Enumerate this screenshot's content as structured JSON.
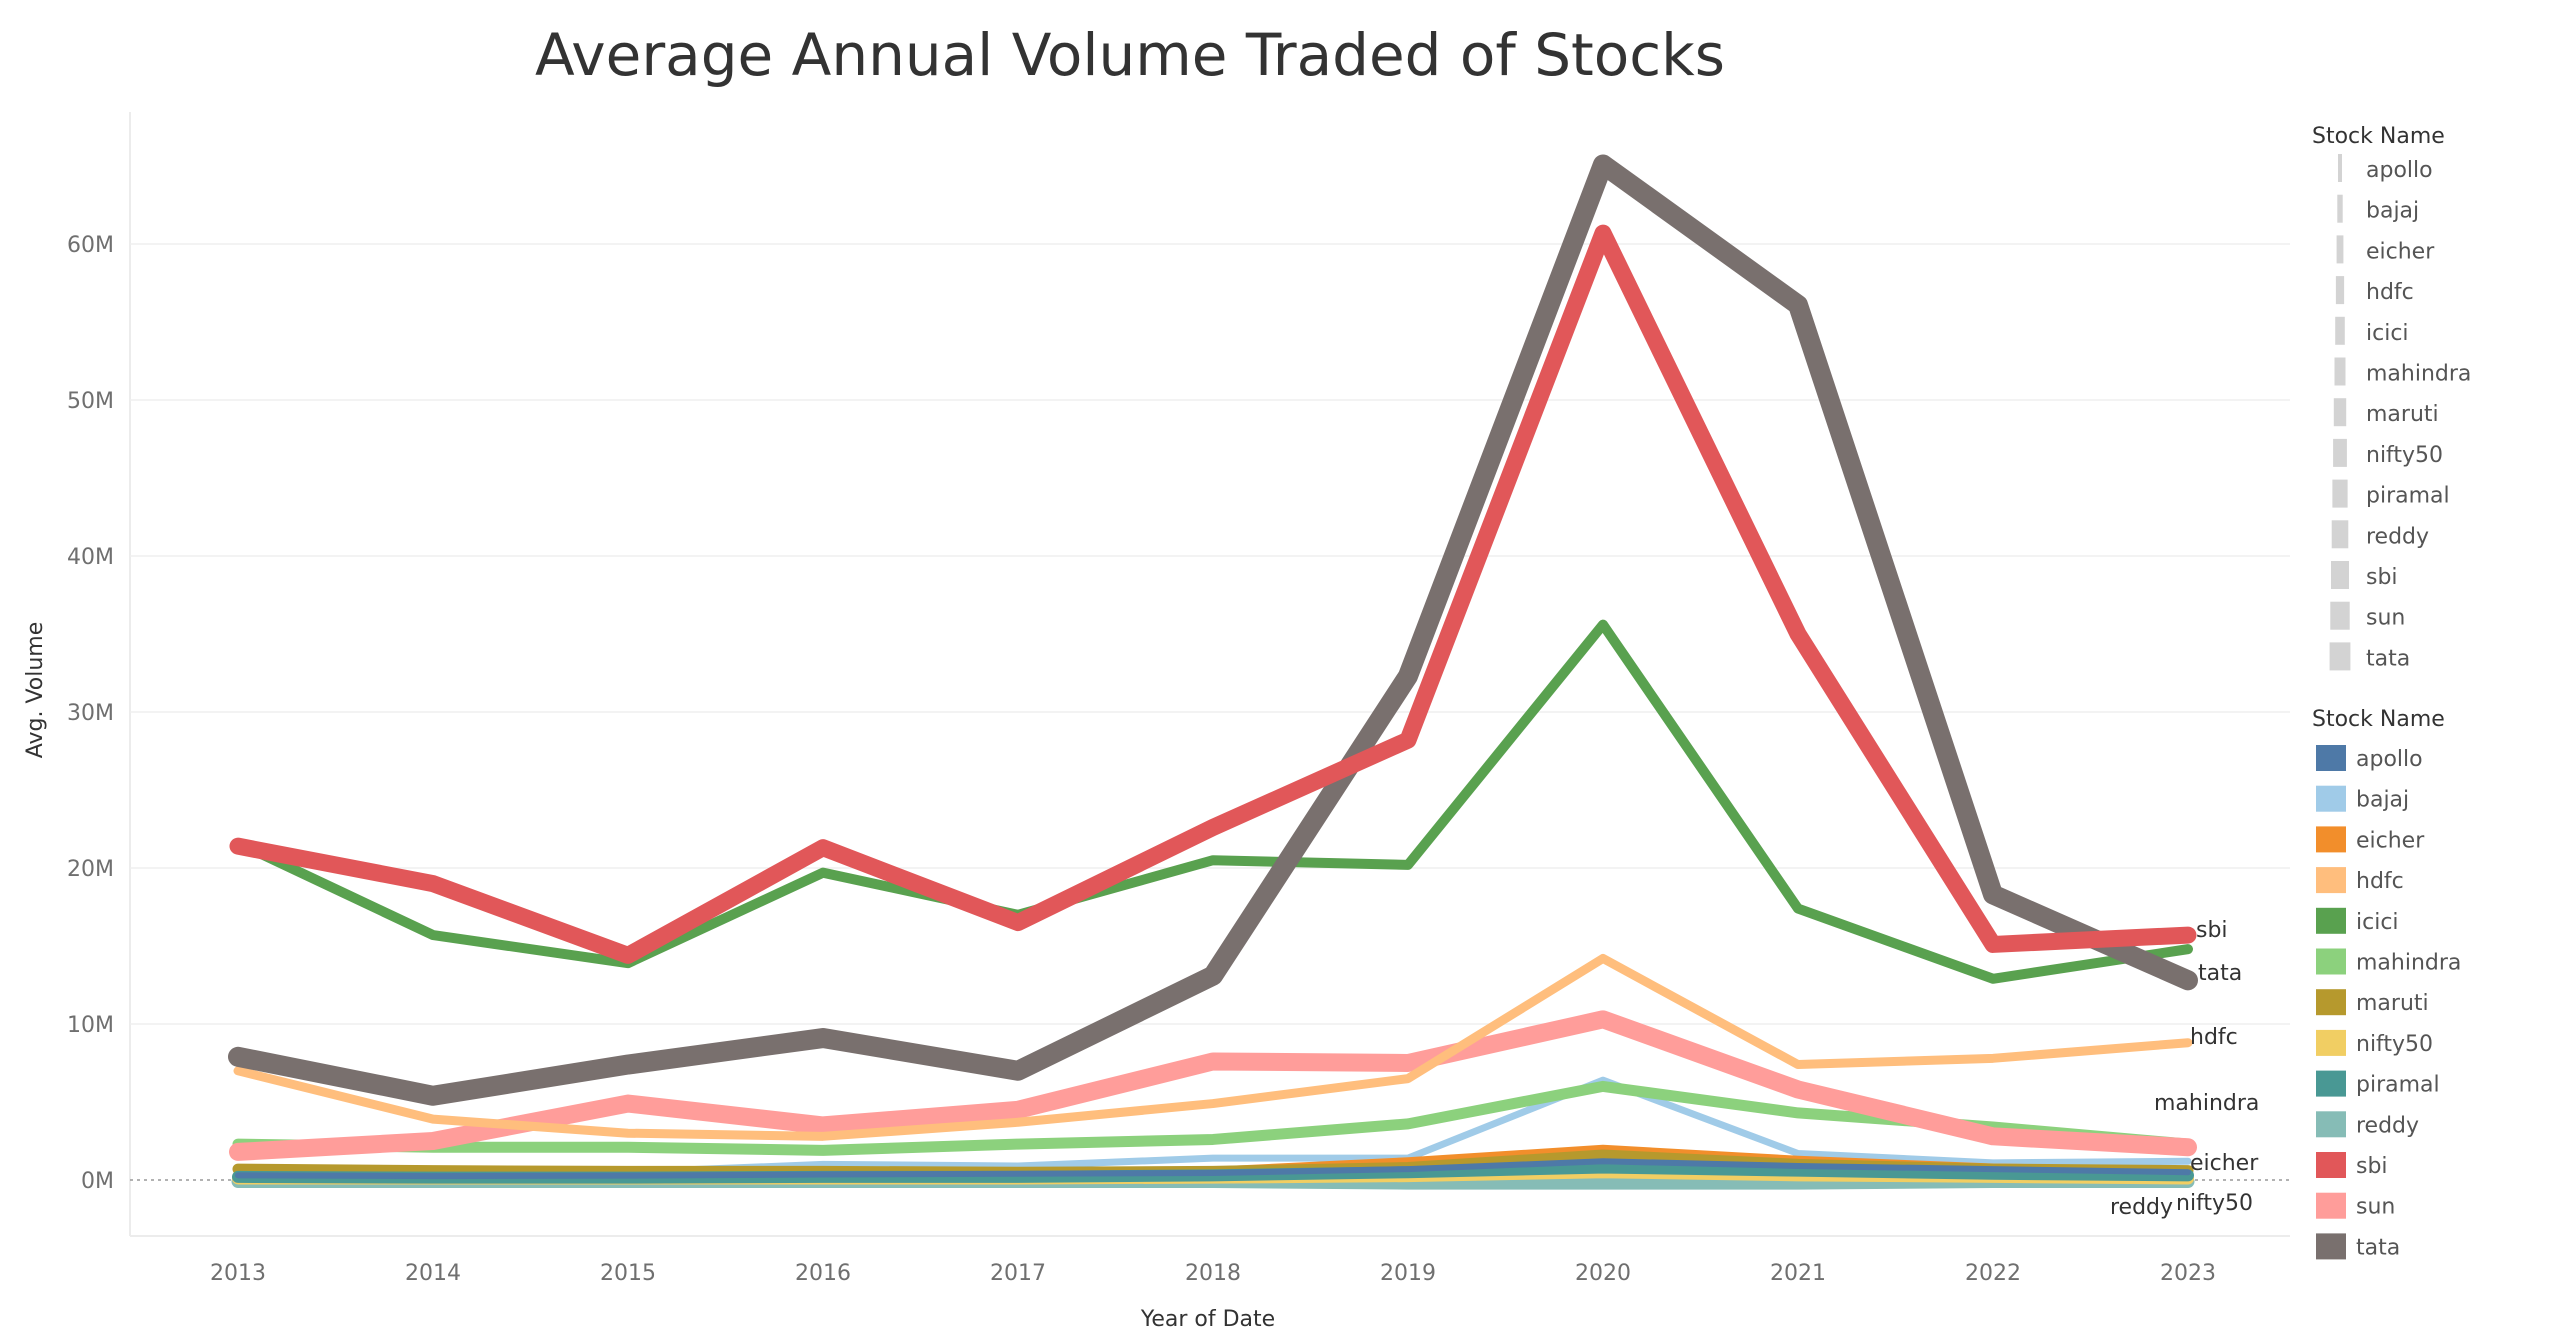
{
  "chart_data": {
    "type": "line",
    "title": "Average Annual Volume Traded of Stocks",
    "xlabel": "Year of Date",
    "ylabel": "Avg. Volume",
    "x": [
      "2013",
      "2014",
      "2015",
      "2016",
      "2017",
      "2018",
      "2019",
      "2020",
      "2021",
      "2022",
      "2023"
    ],
    "ylim": [
      -3500000,
      68500000
    ],
    "yticks": [
      0,
      10000000,
      20000000,
      30000000,
      40000000,
      50000000,
      60000000
    ],
    "ytick_labels": [
      "0M",
      "10M",
      "20M",
      "30M",
      "40M",
      "50M",
      "60M"
    ],
    "grid": true,
    "legend_placement": "right",
    "size_legend": {
      "title": "Stock Name",
      "items": [
        "apollo",
        "bajaj",
        "eicher",
        "hdfc",
        "icici",
        "mahindra",
        "maruti",
        "nifty50",
        "piramal",
        "reddy",
        "sbi",
        "sun",
        "tata"
      ]
    },
    "color_legend": {
      "title": "Stock Name",
      "items": [
        "apollo",
        "bajaj",
        "eicher",
        "hdfc",
        "icici",
        "mahindra",
        "maruti",
        "nifty50",
        "piramal",
        "reddy",
        "sbi",
        "sun",
        "tata"
      ]
    },
    "series": [
      {
        "name": "apollo",
        "color": "#4e79a7",
        "values": [
          300000,
          250000,
          280000,
          350000,
          400000,
          450000,
          700000,
          1200000,
          900000,
          700000,
          500000
        ]
      },
      {
        "name": "bajaj",
        "color": "#a0cbe8",
        "values": [
          500000,
          400000,
          500000,
          1000000,
          900000,
          1400000,
          1400000,
          6400000,
          1700000,
          1100000,
          1200000
        ]
      },
      {
        "name": "eicher",
        "color": "#f28e2b",
        "values": [
          400000,
          300000,
          600000,
          600000,
          500000,
          600000,
          1200000,
          2000000,
          1300000,
          800000,
          600000
        ]
      },
      {
        "name": "hdfc",
        "color": "#ffbe7d",
        "values": [
          7000000,
          3900000,
          3000000,
          2800000,
          3700000,
          4900000,
          6500000,
          14200000,
          7400000,
          7800000,
          8800000
        ]
      },
      {
        "name": "icici",
        "color": "#59a14f",
        "values": [
          21600000,
          15700000,
          13900000,
          19700000,
          17000000,
          20500000,
          20200000,
          35600000,
          17400000,
          12900000,
          14800000
        ]
      },
      {
        "name": "mahindra",
        "color": "#8cd17d",
        "values": [
          2300000,
          2100000,
          2100000,
          1900000,
          2300000,
          2600000,
          3600000,
          6000000,
          4300000,
          3400000,
          2300000
        ]
      },
      {
        "name": "maruti",
        "color": "#b6992d",
        "values": [
          700000,
          600000,
          550000,
          550000,
          500000,
          550000,
          800000,
          1600000,
          1000000,
          700000,
          600000
        ]
      },
      {
        "name": "nifty50",
        "color": "#f1ce63",
        "values": [
          100000,
          100000,
          100000,
          100000,
          100000,
          150000,
          250000,
          500000,
          300000,
          200000,
          100000
        ]
      },
      {
        "name": "piramal",
        "color": "#499894",
        "values": [
          200000,
          150000,
          150000,
          200000,
          200000,
          300000,
          500000,
          800000,
          600000,
          400000,
          300000
        ]
      },
      {
        "name": "reddy",
        "color": "#86bcb6",
        "values": [
          -100000,
          -100000,
          -100000,
          -100000,
          -100000,
          -100000,
          -200000,
          -200000,
          -200000,
          -100000,
          -100000
        ]
      },
      {
        "name": "sbi",
        "color": "#e15759",
        "values": [
          21400000,
          19000000,
          14400000,
          21300000,
          16500000,
          22600000,
          28200000,
          60700000,
          35000000,
          15100000,
          15700000
        ]
      },
      {
        "name": "sun",
        "color": "#ff9d9a",
        "values": [
          1800000,
          2500000,
          4900000,
          3500000,
          4500000,
          7600000,
          7500000,
          10300000,
          5800000,
          2800000,
          2100000
        ]
      },
      {
        "name": "tata",
        "color": "#79706e",
        "values": [
          7900000,
          5400000,
          7400000,
          9100000,
          7000000,
          13100000,
          32300000,
          65100000,
          56100000,
          18300000,
          12800000
        ]
      }
    ],
    "end_labels": [
      "sbi",
      "tata",
      "hdfc",
      "mahindra",
      "eicher",
      "reddy",
      "nifty50"
    ]
  }
}
